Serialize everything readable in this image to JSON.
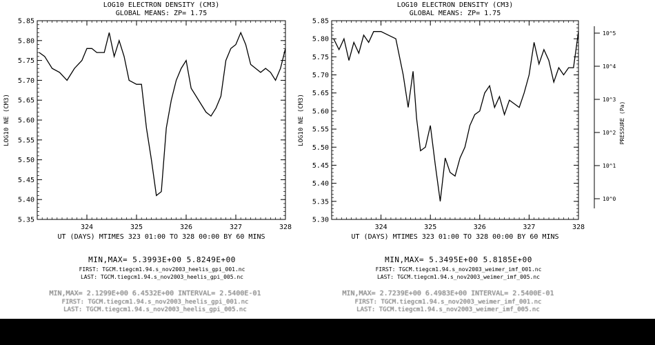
{
  "chart_data": [
    {
      "type": "line",
      "title": "LOG10 ELECTRON DENSITY (CM3)",
      "subtitle": "GLOBAL MEANS: ZP=  1.75",
      "ylabel": "LOG10 NE (CM3)",
      "xlabel": "UT (DAYS) MTIMES 323 01:00 TO 328 00:00 BY    60 MINS",
      "xlim": [
        323,
        328
      ],
      "ylim": [
        5.35,
        5.85
      ],
      "xticks": [
        "324",
        "325",
        "326",
        "327",
        "328"
      ],
      "yticks": [
        "5.35",
        "5.40",
        "5.45",
        "5.50",
        "5.55",
        "5.60",
        "5.65",
        "5.70",
        "5.75",
        "5.80",
        "5.85"
      ],
      "x": [
        323.04,
        323.15,
        323.3,
        323.45,
        323.6,
        323.75,
        323.9,
        324.0,
        324.1,
        324.2,
        324.35,
        324.45,
        324.55,
        324.65,
        324.75,
        324.85,
        325.0,
        325.1,
        325.2,
        325.3,
        325.4,
        325.5,
        325.55,
        325.6,
        325.7,
        325.8,
        325.9,
        326.0,
        326.1,
        326.2,
        326.3,
        326.4,
        326.5,
        326.6,
        326.7,
        326.8,
        326.9,
        327.0,
        327.1,
        327.2,
        327.3,
        327.4,
        327.5,
        327.6,
        327.7,
        327.8,
        327.9,
        328.0
      ],
      "values": [
        5.77,
        5.76,
        5.73,
        5.72,
        5.7,
        5.73,
        5.75,
        5.78,
        5.78,
        5.77,
        5.77,
        5.82,
        5.76,
        5.8,
        5.76,
        5.7,
        5.69,
        5.69,
        5.58,
        5.5,
        5.41,
        5.42,
        5.5,
        5.58,
        5.65,
        5.7,
        5.73,
        5.75,
        5.68,
        5.66,
        5.64,
        5.62,
        5.61,
        5.63,
        5.66,
        5.75,
        5.78,
        5.79,
        5.82,
        5.79,
        5.74,
        5.73,
        5.72,
        5.73,
        5.72,
        5.7,
        5.73,
        5.78
      ],
      "info": {
        "minmax": "MIN,MAX=  5.3993E+00  5.8249E+00",
        "first": "FIRST: TGCM.tiegcm1.94.s_nov2003_heelis_gpi_001.nc",
        "last": "LAST:  TGCM.tiegcm1.94.s_nov2003_heelis_gpi_005.nc"
      },
      "ghost": {
        "minmax": "MIN,MAX=  2.1299E+00  6.4532E+00  INTERVAL=  2.5400E-01",
        "first": "FIRST:  TGCM.tiegcm1.94.s_nov2003_heelis_gpi_001.nc",
        "last": "LAST:   TGCM.tiegcm1.94.s_nov2003_heelis_gpi_005.nc"
      }
    },
    {
      "type": "line",
      "title": "LOG10 ELECTRON DENSITY (CM3)",
      "subtitle": "GLOBAL MEANS: ZP=  1.75",
      "ylabel": "LOG10 NE (CM3)",
      "xlabel": "UT (DAYS) MTIMES 323 01:00 TO 328 00:00 BY    60 MINS",
      "xlim": [
        323,
        328
      ],
      "ylim": [
        5.3,
        5.85
      ],
      "xticks": [
        "324",
        "325",
        "326",
        "327",
        "328"
      ],
      "yticks": [
        "5.30",
        "5.35",
        "5.40",
        "5.45",
        "5.50",
        "5.55",
        "5.60",
        "5.65",
        "5.70",
        "5.75",
        "5.80",
        "5.85"
      ],
      "x": [
        323.04,
        323.15,
        323.25,
        323.35,
        323.45,
        323.55,
        323.65,
        323.75,
        323.85,
        324.0,
        324.15,
        324.3,
        324.45,
        324.55,
        324.65,
        324.72,
        324.8,
        324.9,
        325.0,
        325.1,
        325.2,
        325.3,
        325.4,
        325.5,
        325.6,
        325.7,
        325.8,
        325.9,
        326.0,
        326.1,
        326.2,
        326.3,
        326.4,
        326.5,
        326.6,
        326.7,
        326.8,
        326.9,
        327.0,
        327.1,
        327.2,
        327.3,
        327.4,
        327.5,
        327.6,
        327.7,
        327.8,
        327.9,
        328.0
      ],
      "values": [
        5.8,
        5.77,
        5.8,
        5.74,
        5.79,
        5.76,
        5.81,
        5.79,
        5.82,
        5.82,
        5.81,
        5.8,
        5.7,
        5.61,
        5.71,
        5.58,
        5.49,
        5.5,
        5.56,
        5.45,
        5.35,
        5.47,
        5.43,
        5.42,
        5.47,
        5.5,
        5.56,
        5.59,
        5.6,
        5.65,
        5.67,
        5.61,
        5.64,
        5.59,
        5.63,
        5.62,
        5.61,
        5.65,
        5.7,
        5.79,
        5.73,
        5.77,
        5.74,
        5.68,
        5.72,
        5.7,
        5.72,
        5.72,
        5.82
      ],
      "info": {
        "minmax": "MIN,MAX=  5.3495E+00  5.8185E+00",
        "first": "FIRST: TGCM.tiegcm1.94.s_nov2003_weimer_imf_001.nc",
        "last": "LAST:  TGCM.tiegcm1.94.s_nov2003_weimer_imf_005.nc"
      },
      "ghost": {
        "minmax": "MIN,MAX=  2.7239E+00  6.4983E+00  INTERVAL=  2.5400E-01",
        "first": "FIRST:  TGCM.tiegcm1.94.s_nov2003_weimer_imf_001.nc",
        "last": "LAST:   TGCM.tiegcm1.94.s_nov2003_weimer_imf_005.nc"
      }
    }
  ],
  "colorbar": {
    "labels": [
      "10^5",
      "10^4",
      "10^3",
      "10^2",
      "10^1",
      "10^0"
    ],
    "side_label": "PRESSURE (Pa)"
  }
}
